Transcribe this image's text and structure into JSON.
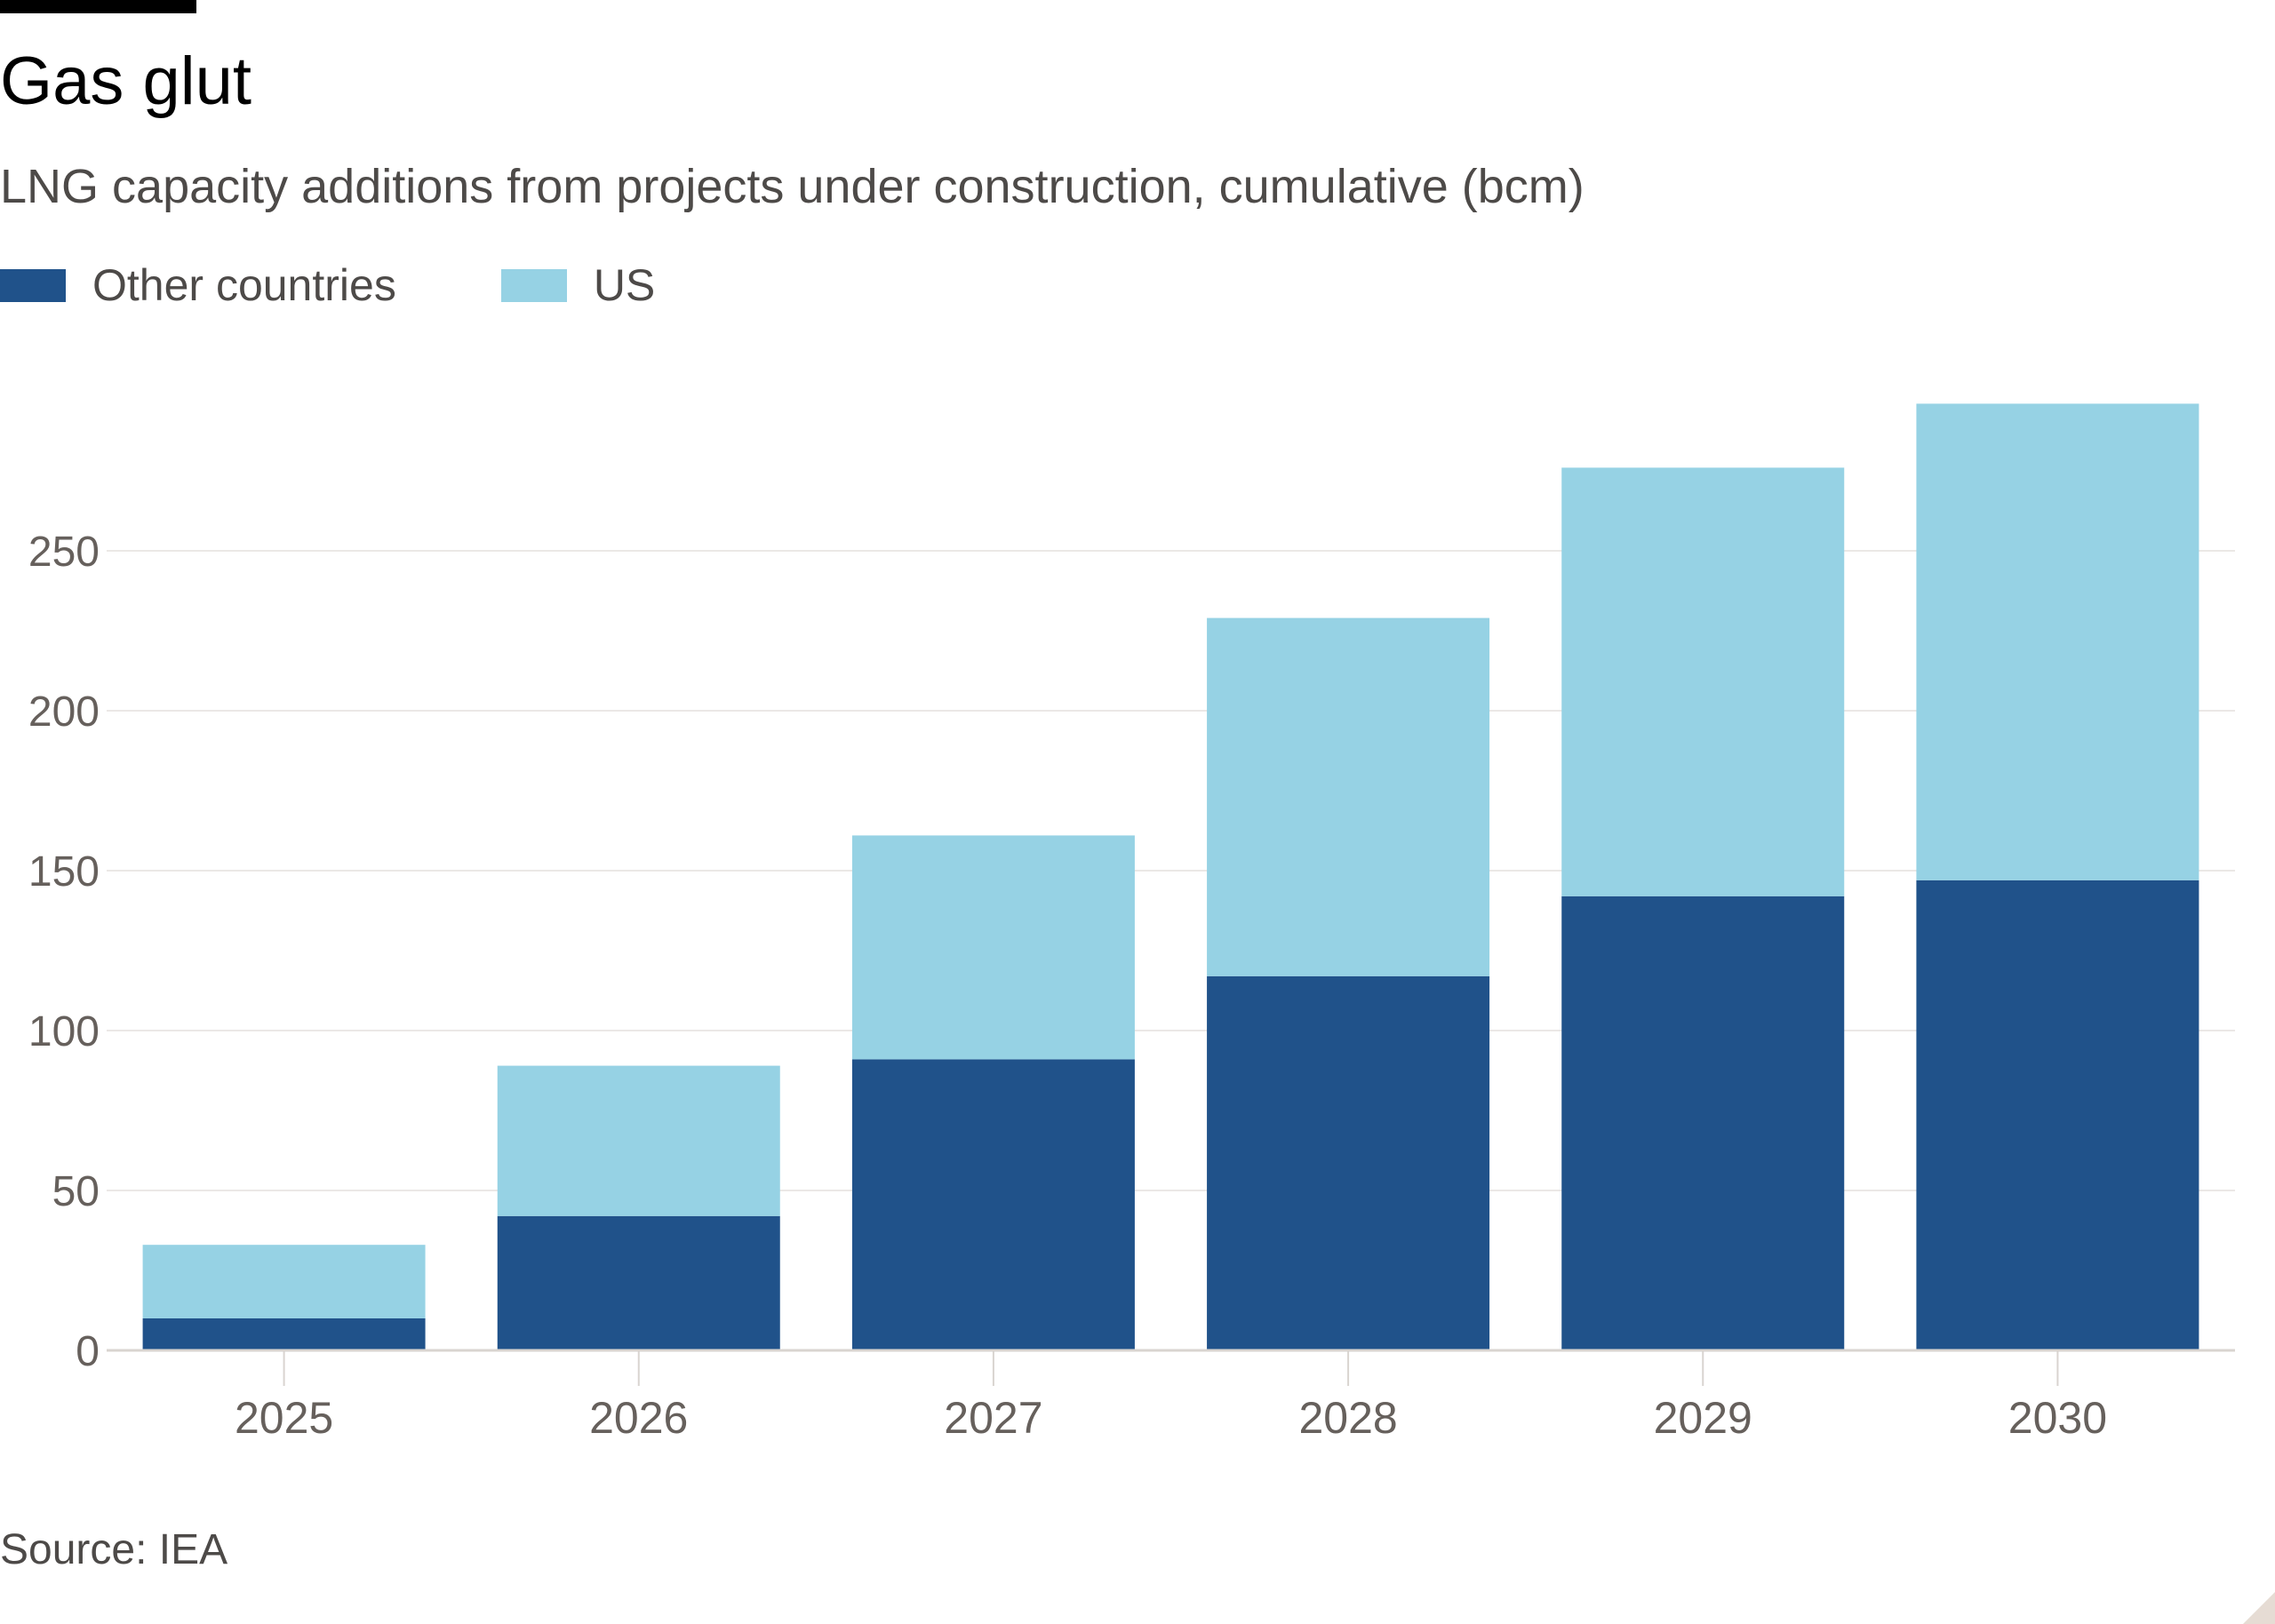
{
  "header": {
    "title": "Gas glut",
    "subtitle": "LNG capacity additions from projects under construction, cumulative (bcm)"
  },
  "legend": [
    {
      "label": "Other countries",
      "color": "#20528a"
    },
    {
      "label": "US",
      "color": "#96d2e4"
    }
  ],
  "footer": {
    "source": "Source: IEA"
  },
  "colors": {
    "gridline": "#ebe8e6",
    "axis_text": "#66605c",
    "baseline": "#d9d4d0"
  },
  "chart_data": {
    "type": "bar",
    "stacked": true,
    "title": "Gas glut",
    "subtitle": "LNG capacity additions from projects under construction, cumulative (bcm)",
    "categories": [
      "2025",
      "2026",
      "2027",
      "2028",
      "2029",
      "2030"
    ],
    "series": [
      {
        "name": "Other countries",
        "color": "#20528a",
        "values": [
          10,
          42,
          91,
          117,
          142,
          147
        ]
      },
      {
        "name": "US",
        "color": "#96d2e4",
        "values": [
          23,
          47,
          70,
          112,
          134,
          149
        ]
      }
    ],
    "yticks": [
      0,
      50,
      100,
      150,
      200,
      250
    ],
    "ylim": [
      0,
      295
    ],
    "xlabel": "",
    "ylabel": "",
    "grid": true,
    "legend_position": "top-left"
  }
}
